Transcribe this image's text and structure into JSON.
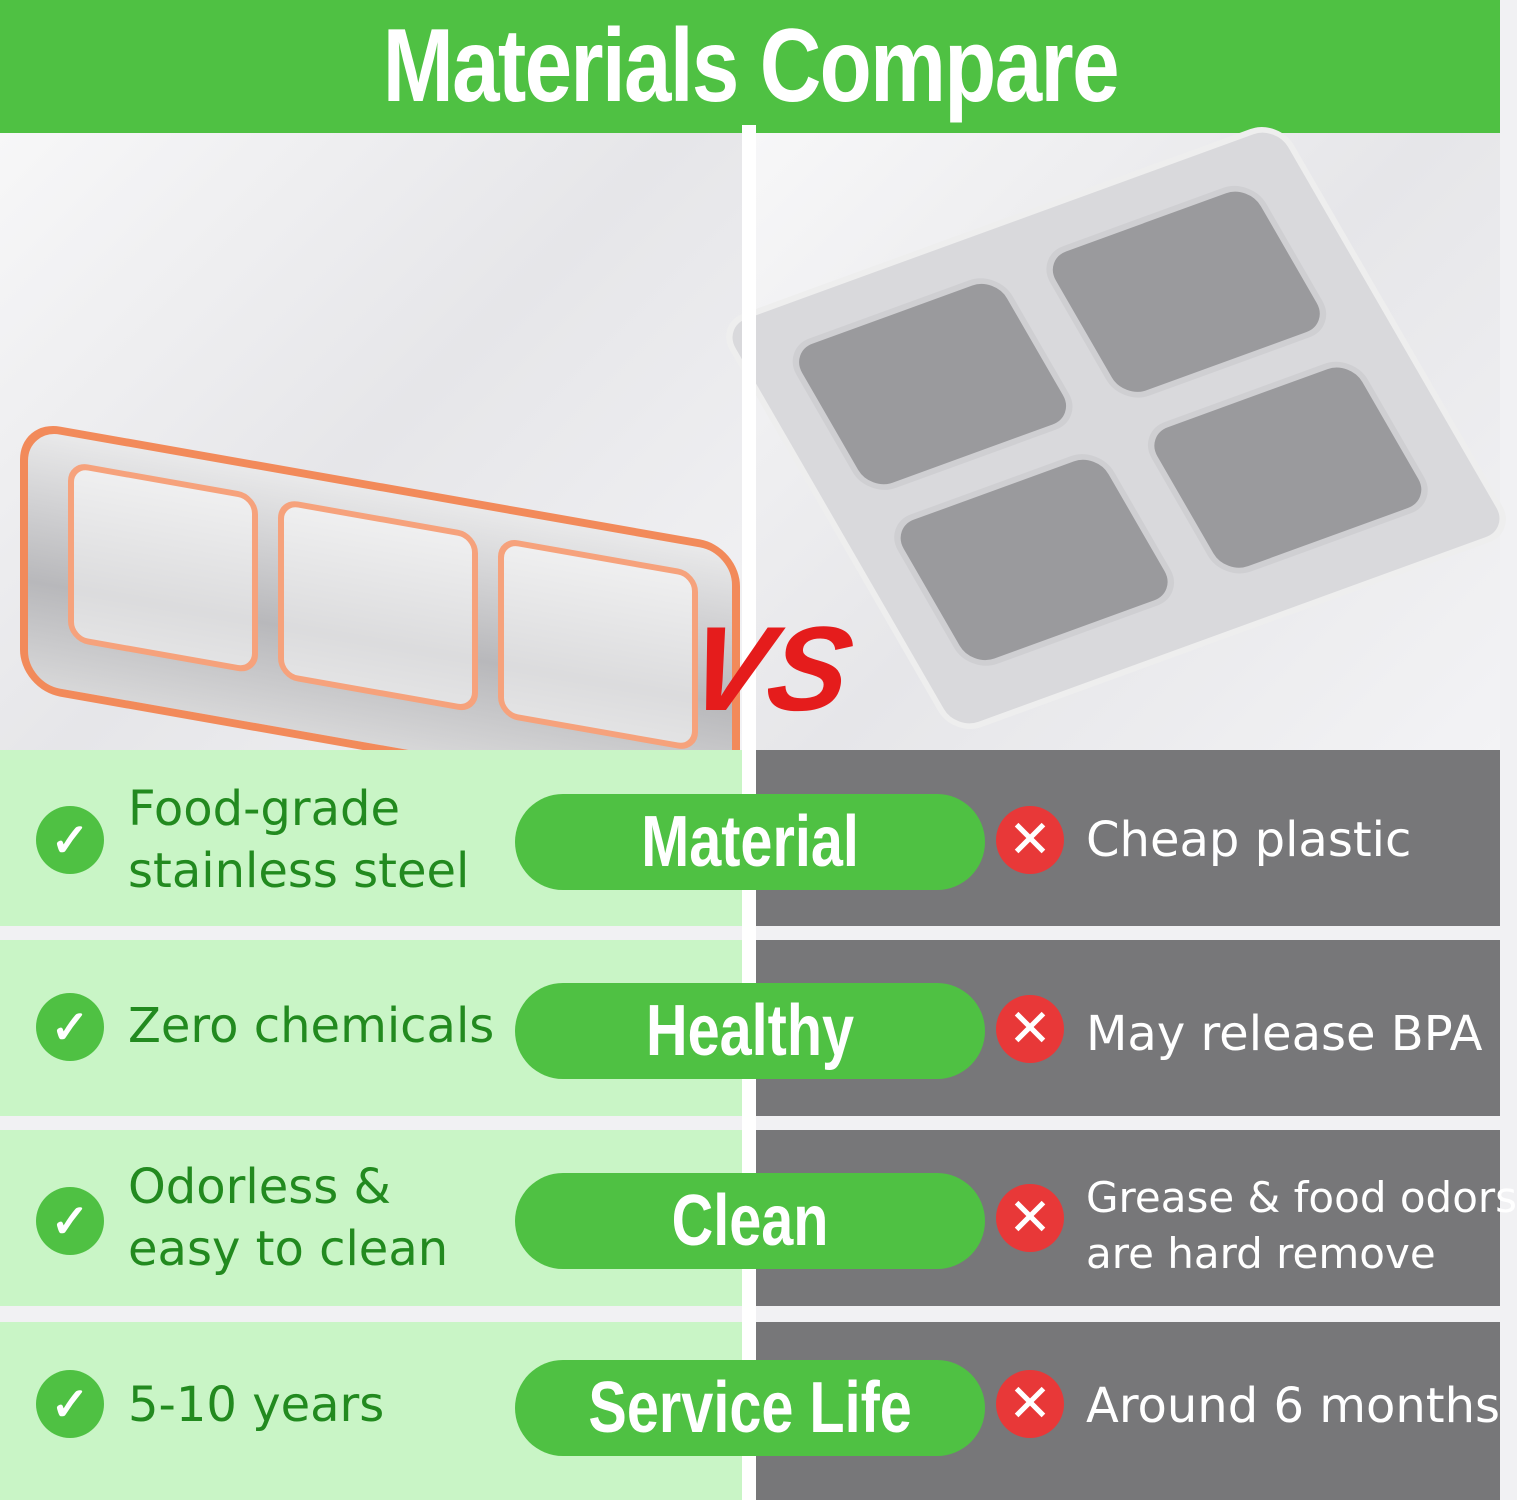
{
  "title": "Materials Compare",
  "vs_label": "VS",
  "colors": {
    "brand_green": "#4fc143",
    "left_bg": "#c9f5c6",
    "right_bg": "#777779",
    "cross_red": "#e83838",
    "left_text": "#228a1f"
  },
  "left_product": "stainless-steel-3-compartment-container-image",
  "right_product": "plastic-4-compartment-container-image",
  "rows": [
    {
      "category": "Material",
      "pro": "Food-grade stainless steel",
      "pro_lines": [
        "Food-grade",
        "stainless steel"
      ],
      "con_lines": [
        "Cheap plastic"
      ]
    },
    {
      "category": "Healthy",
      "pro_lines": [
        "Zero chemicals"
      ],
      "con_lines": [
        "May release BPA"
      ]
    },
    {
      "category": "Clean",
      "pro_lines": [
        "Odorless &",
        "easy to clean"
      ],
      "con_lines": [
        "Grease & food odors",
        "are hard remove"
      ]
    },
    {
      "category": "Service Life",
      "pro_lines": [
        "5-10 years"
      ],
      "con_lines": [
        "Around 6 months"
      ]
    }
  ]
}
